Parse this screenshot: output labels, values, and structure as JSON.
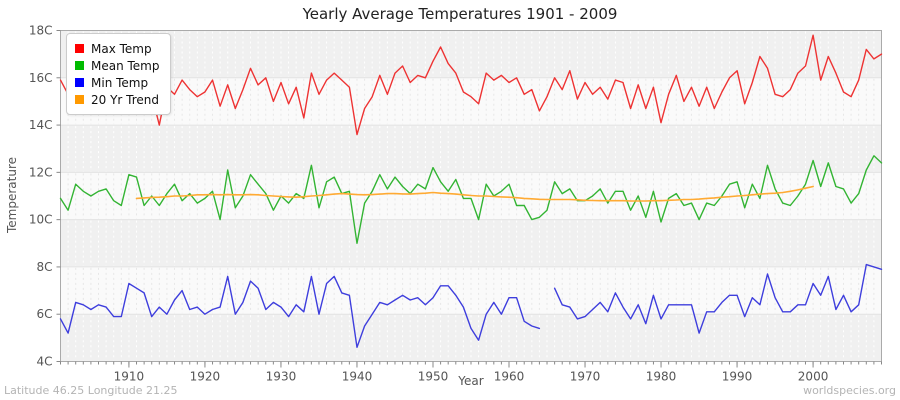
{
  "title": "Yearly Average Temperatures 1901 - 2009",
  "footer": {
    "left": "Latitude 46.25 Longitude 21.25",
    "right": "worldspecies.org"
  },
  "legend": {
    "items": [
      {
        "label": "Max Temp",
        "swatch_color": "#ff0000"
      },
      {
        "label": "Mean Temp",
        "swatch_color": "#00bb00"
      },
      {
        "label": "Min Temp",
        "swatch_color": "#0000ff"
      },
      {
        "label": "20 Yr Trend",
        "swatch_color": "#ff9900"
      }
    ]
  },
  "chart_data": {
    "type": "line",
    "title": "Yearly Average Temperatures 1901 - 2009",
    "xlabel": "Year",
    "ylabel": "Temperature",
    "xlim": [
      1901,
      2009
    ],
    "ylim": [
      4,
      18
    ],
    "y_tick_labels": [
      "18C",
      "16C",
      "14C",
      "12C",
      "10C",
      "8C",
      "6C",
      "4C"
    ],
    "y_tick_values": [
      18,
      16,
      14,
      12,
      10,
      8,
      6,
      4
    ],
    "x_tick_values": [
      1910,
      1920,
      1930,
      1940,
      1950,
      1960,
      1970,
      1980,
      1990,
      2000
    ],
    "grid": "yearly dashed verticals, 2C horizontal bands",
    "legend_position": "top-left",
    "plot_colors": {
      "band_dark": "#f0f0f0",
      "band_light": "#fafafa",
      "frame": "#aaaaaa",
      "tick": "#888888",
      "tick_label": "#555555"
    },
    "series": [
      {
        "name": "Max Temp",
        "color": "#ee3333",
        "width": 1.4,
        "start_year": 1901,
        "values": [
          15.9,
          15.3,
          15.7,
          15.9,
          15.4,
          15.8,
          15.1,
          15.3,
          14.9,
          15.3,
          15.6,
          15.0,
          15.3,
          14.0,
          15.6,
          15.3,
          15.9,
          15.5,
          15.2,
          15.4,
          15.9,
          14.8,
          15.7,
          14.7,
          15.5,
          16.4,
          15.7,
          16.0,
          15.0,
          15.8,
          14.9,
          15.6,
          14.3,
          16.2,
          15.3,
          15.9,
          16.2,
          15.9,
          15.6,
          13.6,
          14.7,
          15.2,
          16.1,
          15.3,
          16.2,
          16.5,
          15.8,
          16.1,
          16.0,
          16.7,
          17.3,
          16.6,
          16.2,
          15.4,
          15.2,
          14.9,
          16.2,
          15.9,
          16.1,
          15.8,
          16.0,
          15.3,
          15.5,
          14.6,
          15.2,
          16.0,
          15.5,
          16.3,
          15.1,
          15.8,
          15.3,
          15.6,
          15.1,
          15.9,
          15.8,
          14.7,
          15.7,
          14.7,
          15.6,
          14.1,
          15.3,
          16.1,
          15.0,
          15.6,
          14.8,
          15.6,
          14.7,
          15.4,
          16.0,
          16.3,
          14.9,
          15.8,
          16.9,
          16.4,
          15.3,
          15.2,
          15.5,
          16.2,
          16.5,
          17.8,
          15.9,
          16.9,
          16.2,
          15.4,
          15.2,
          15.9,
          17.2,
          16.8,
          17.0
        ]
      },
      {
        "name": "Mean Temp",
        "color": "#33b433",
        "width": 1.4,
        "start_year": 1901,
        "values": [
          10.9,
          10.4,
          11.5,
          11.2,
          11.0,
          11.2,
          11.3,
          10.8,
          10.6,
          11.9,
          11.8,
          10.6,
          11.0,
          10.6,
          11.1,
          11.5,
          10.8,
          11.1,
          10.7,
          10.9,
          11.2,
          10.0,
          12.1,
          10.5,
          11.0,
          11.9,
          11.5,
          11.1,
          10.4,
          11.0,
          10.7,
          11.1,
          10.9,
          12.3,
          10.5,
          11.6,
          11.8,
          11.1,
          11.2,
          9.0,
          10.7,
          11.2,
          11.9,
          11.3,
          11.8,
          11.4,
          11.1,
          11.5,
          11.3,
          12.2,
          11.6,
          11.2,
          11.7,
          10.9,
          10.9,
          10.0,
          11.5,
          11.0,
          11.2,
          11.5,
          10.6,
          10.6,
          10.0,
          10.1,
          10.4,
          11.6,
          11.1,
          11.3,
          10.8,
          10.8,
          11.0,
          11.3,
          10.7,
          11.2,
          11.2,
          10.4,
          11.0,
          10.1,
          11.2,
          9.9,
          10.9,
          11.1,
          10.6,
          10.7,
          10.0,
          10.7,
          10.6,
          11.0,
          11.5,
          11.6,
          10.5,
          11.5,
          10.9,
          12.3,
          11.3,
          10.7,
          10.6,
          11.0,
          11.5,
          12.5,
          11.4,
          12.4,
          11.4,
          11.3,
          10.7,
          11.1,
          12.1,
          12.7,
          12.4
        ]
      },
      {
        "name": "Min Temp",
        "color": "#3e3edd",
        "width": 1.4,
        "start_year": 1901,
        "values": [
          5.8,
          5.2,
          6.5,
          6.4,
          6.2,
          6.4,
          6.3,
          5.9,
          5.9,
          7.3,
          7.1,
          6.9,
          5.9,
          6.3,
          6.0,
          6.6,
          7.0,
          6.2,
          6.3,
          6.0,
          6.2,
          6.3,
          7.6,
          6.0,
          6.5,
          7.4,
          7.1,
          6.2,
          6.5,
          6.3,
          5.9,
          6.4,
          6.1,
          7.6,
          6.0,
          7.3,
          7.6,
          6.9,
          6.8,
          4.6,
          5.5,
          6.0,
          6.5,
          6.4,
          6.6,
          6.8,
          6.6,
          6.7,
          6.4,
          6.7,
          7.2,
          7.2,
          6.8,
          6.3,
          5.4,
          4.9,
          6.0,
          6.5,
          6.0,
          6.7,
          6.7,
          5.7,
          5.5,
          5.4,
          null,
          7.1,
          6.4,
          6.3,
          5.8,
          5.9,
          6.2,
          6.5,
          6.1,
          6.9,
          6.3,
          5.8,
          6.4,
          5.6,
          6.8,
          5.8,
          6.4,
          6.4,
          6.4,
          6.4,
          5.2,
          6.1,
          6.1,
          6.5,
          6.8,
          6.8,
          5.9,
          6.7,
          6.4,
          7.7,
          6.7,
          6.1,
          6.1,
          6.4,
          6.4,
          7.3,
          6.8,
          7.6,
          6.2,
          6.8,
          6.1,
          6.4,
          8.1,
          8.0,
          7.9
        ]
      },
      {
        "name": "20 Yr Trend",
        "color": "#ffaa33",
        "width": 1.6,
        "start_year": 1911,
        "values": [
          10.9,
          10.92,
          10.94,
          10.95,
          10.97,
          11.0,
          11.0,
          11.02,
          11.05,
          11.05,
          11.06,
          11.05,
          11.06,
          11.05,
          11.05,
          11.06,
          11.05,
          11.02,
          11.0,
          10.98,
          10.96,
          10.95,
          10.97,
          11.0,
          11.02,
          11.05,
          11.08,
          11.1,
          11.08,
          11.06,
          11.05,
          11.06,
          11.08,
          11.1,
          11.1,
          11.09,
          11.08,
          11.1,
          11.12,
          11.15,
          11.12,
          11.1,
          11.08,
          11.05,
          11.02,
          11.0,
          11.0,
          10.98,
          10.96,
          10.95,
          10.93,
          10.9,
          10.88,
          10.86,
          10.85,
          10.85,
          10.85,
          10.85,
          10.84,
          10.82,
          10.81,
          10.8,
          10.8,
          10.8,
          10.8,
          10.79,
          10.79,
          10.79,
          10.8,
          10.8,
          10.82,
          10.83,
          10.85,
          10.85,
          10.87,
          10.9,
          10.92,
          10.95,
          10.97,
          11.0,
          11.02,
          11.05,
          11.08,
          11.1,
          11.12,
          11.15,
          11.2,
          11.26,
          11.33,
          11.4
        ]
      }
    ]
  }
}
